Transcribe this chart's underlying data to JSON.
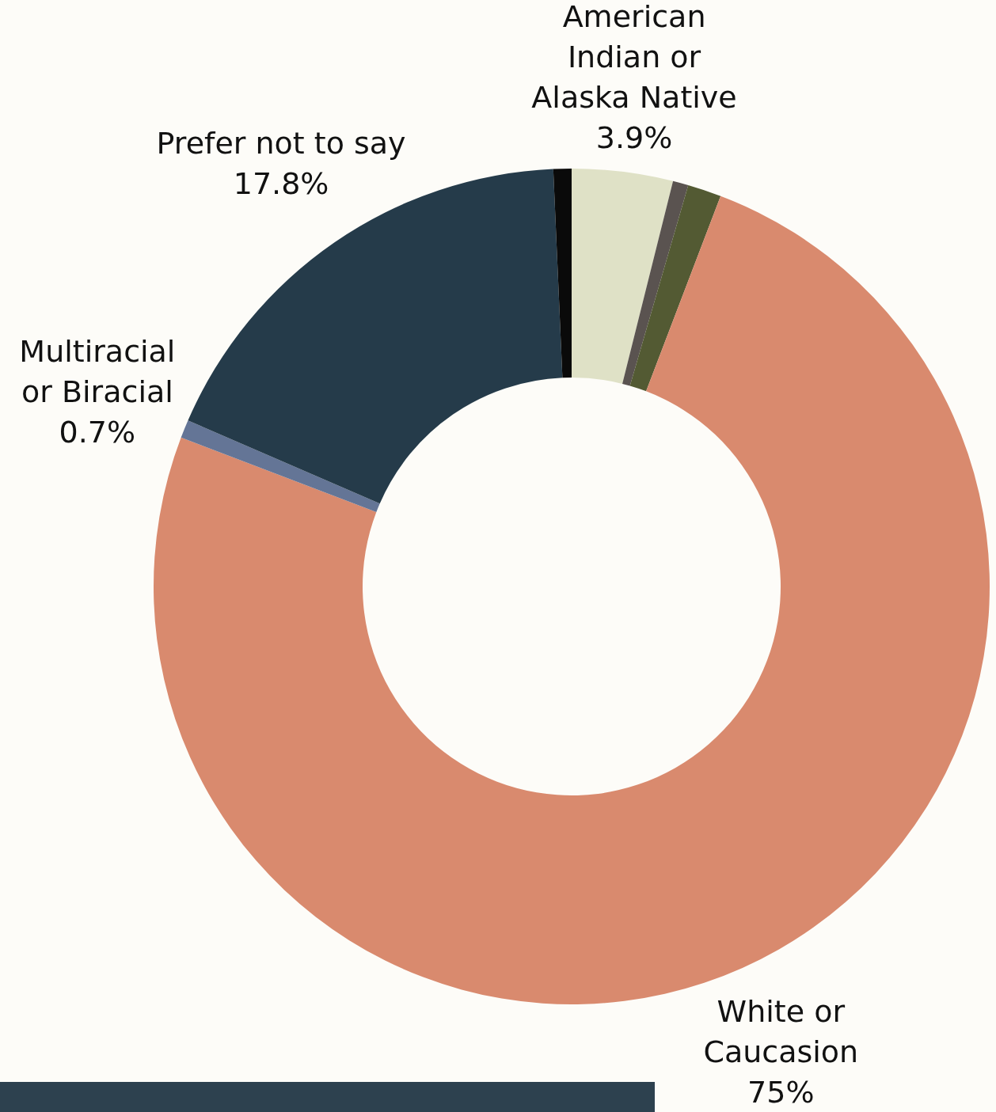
{
  "chart_data": {
    "type": "donut",
    "categories": [
      "American\nIndian or\nAlaska Native",
      null,
      null,
      "White or\nCaucasion",
      "Multiracial\nor Biracial",
      "Prefer not to say",
      null
    ],
    "values": [
      3.9,
      0.6,
      1.3,
      75,
      0.7,
      17.8,
      0.7
    ],
    "colors": [
      "#dfe1c6",
      "#5a5350",
      "#535a33",
      "#d98a6e",
      "#647596",
      "#253b4a",
      "#0a0a0a"
    ],
    "value_labels": [
      "3.9%",
      null,
      null,
      "75%",
      "0.7%",
      "17.8%",
      null
    ]
  }
}
